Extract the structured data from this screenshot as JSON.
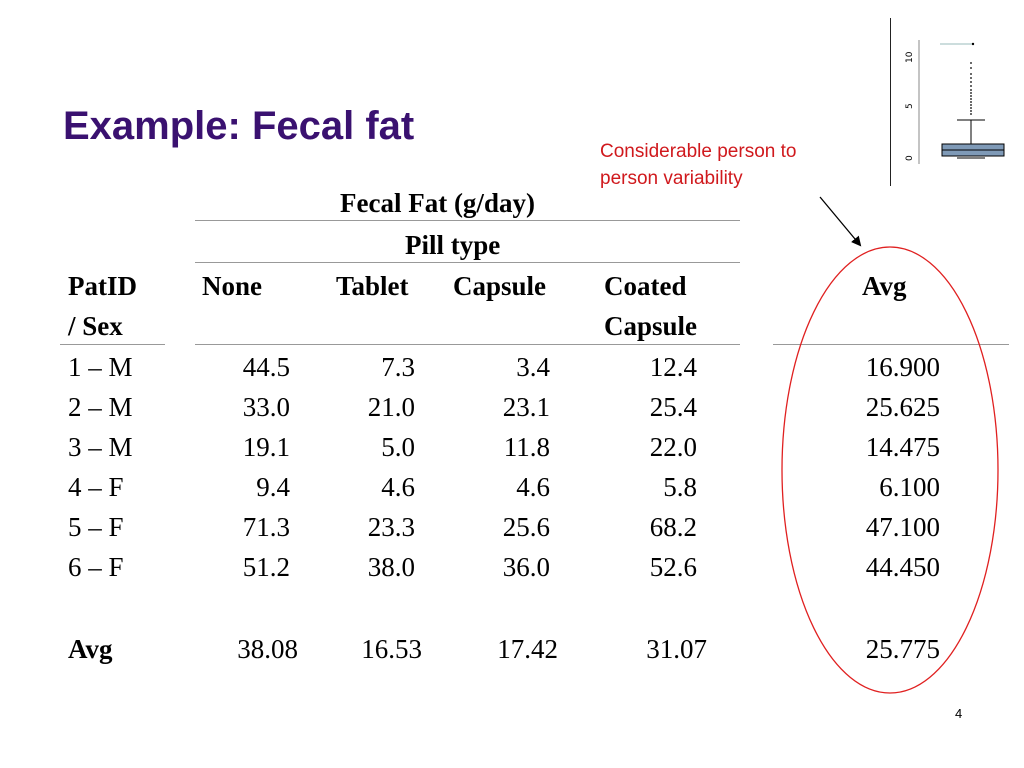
{
  "slide": {
    "title": "Example:  Fecal fat",
    "page_number": "4"
  },
  "annotation": {
    "line1": "Considerable person to",
    "line2": "person variability",
    "color": "#d0191d"
  },
  "boxplot": {
    "axis_ticks": [
      "0",
      "5",
      "10"
    ]
  },
  "table": {
    "caption": "Fecal Fat (g/day)",
    "group_header": "Pill type",
    "headers": {
      "id_line1": "PatID",
      "id_line2": "/ Sex",
      "none": "None",
      "tablet": "Tablet",
      "capsule": "Capsule",
      "coated_line1": "Coated",
      "coated_line2": "Capsule",
      "avg": "Avg"
    },
    "rows": [
      {
        "id": "1 – M",
        "none": "44.5",
        "tablet": "7.3",
        "capsule": "3.4",
        "coated": "12.4",
        "avg": "16.900"
      },
      {
        "id": "2 – M",
        "none": "33.0",
        "tablet": "21.0",
        "capsule": "23.1",
        "coated": "25.4",
        "avg": "25.625"
      },
      {
        "id": "3 – M",
        "none": "19.1",
        "tablet": "5.0",
        "capsule": "11.8",
        "coated": "22.0",
        "avg": "14.475"
      },
      {
        "id": "4 – F",
        "none": "9.4",
        "tablet": "4.6",
        "capsule": "4.6",
        "coated": "5.8",
        "avg": "6.100"
      },
      {
        "id": "5 – F",
        "none": "71.3",
        "tablet": "23.3",
        "capsule": "25.6",
        "coated": "68.2",
        "avg": "47.100"
      },
      {
        "id": "6 – F",
        "none": "51.2",
        "tablet": "38.0",
        "capsule": "36.0",
        "coated": "52.6",
        "avg": "44.450"
      }
    ],
    "avg_row": {
      "label": "Avg",
      "none": "38.08",
      "tablet": "16.53",
      "capsule": "17.42",
      "coated": "31.07",
      "avg": "25.775"
    }
  }
}
